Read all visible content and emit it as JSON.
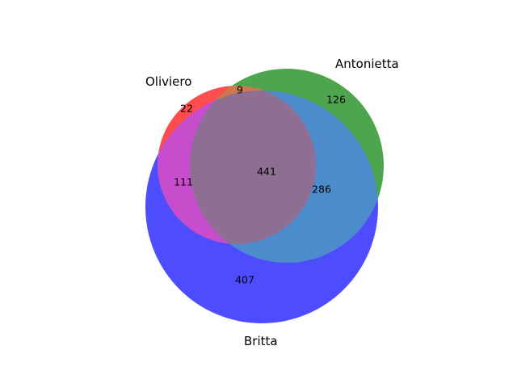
{
  "diagram": {
    "type": "venn3",
    "sets": [
      {
        "id": "A",
        "name": "Oliviero",
        "color": "#ff0000"
      },
      {
        "id": "B",
        "name": "Antonietta",
        "color": "#008000"
      },
      {
        "id": "C",
        "name": "Britta",
        "color": "#0000ff"
      }
    ],
    "regions": [
      {
        "sets": "A",
        "value": "22"
      },
      {
        "sets": "B",
        "value": "126"
      },
      {
        "sets": "C",
        "value": "407"
      },
      {
        "sets": "AB",
        "value": "9"
      },
      {
        "sets": "AC",
        "value": "111"
      },
      {
        "sets": "BC",
        "value": "286"
      },
      {
        "sets": "ABC",
        "value": "441"
      }
    ]
  }
}
